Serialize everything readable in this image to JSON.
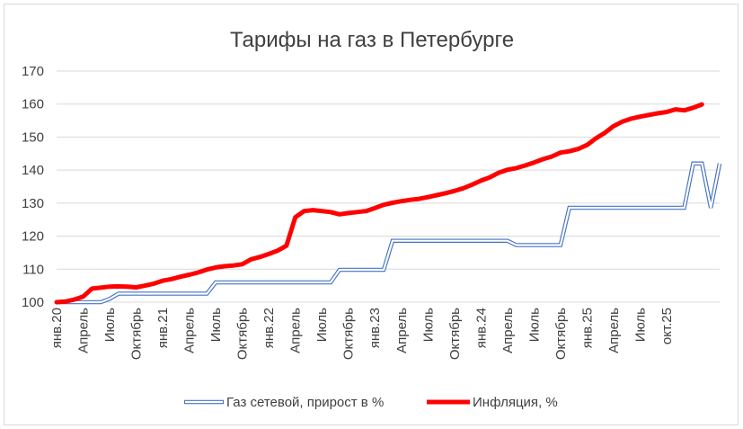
{
  "chart_data": {
    "type": "line",
    "title": "Тарифы на газ в Петербурге",
    "xlabel": "",
    "ylabel": "",
    "ylim": [
      100,
      170
    ],
    "yticks": [
      100,
      110,
      120,
      130,
      140,
      150,
      160,
      170
    ],
    "x_tick_labels": [
      "янв.20",
      "Апрель",
      "Июль",
      "Октябрь",
      "янв.21",
      "Апрель",
      "Июль",
      "Октябрь",
      "янв.22",
      "Апрель",
      "Июль",
      "Октябрь",
      "янв.23",
      "Апрель",
      "Июль",
      "Октябрь",
      "янв.24",
      "Апрель",
      "Июль",
      "Октябрь",
      "янв.25",
      "Апрель",
      "Июль",
      "окт.25"
    ],
    "grid": true,
    "legend_position": "bottom",
    "series": [
      {
        "name": "Газ сетевой, прирост в %",
        "color": "#4472c4",
        "style": "double-line",
        "values": [
          100,
          100,
          100,
          100,
          100,
          100,
          101,
          102.6,
          102.6,
          102.6,
          102.6,
          102.6,
          102.6,
          102.6,
          102.6,
          102.6,
          102.6,
          102.6,
          106,
          106,
          106,
          106,
          106,
          106,
          106,
          106,
          106,
          106,
          106,
          106,
          106,
          106,
          109.8,
          109.8,
          109.8,
          109.8,
          109.8,
          109.8,
          118.6,
          118.6,
          118.6,
          118.6,
          118.6,
          118.6,
          118.6,
          118.6,
          118.6,
          118.6,
          118.6,
          118.6,
          118.6,
          118.6,
          117.3,
          117.3,
          117.3,
          117.3,
          117.3,
          117.3,
          128.6,
          128.6,
          128.6,
          128.6,
          128.6,
          128.6,
          128.6,
          128.6,
          128.6,
          128.6,
          128.6,
          128.6,
          128.6,
          128.6,
          142,
          142,
          128.6,
          142
        ]
      },
      {
        "name": "Инфляция, %",
        "color": "#ff0000",
        "style": "thick",
        "values": [
          100,
          100.2,
          100.8,
          101.7,
          104.1,
          104.4,
          104.7,
          104.8,
          104.7,
          104.5,
          105,
          105.6,
          106.5,
          107,
          107.7,
          108.3,
          109,
          109.9,
          110.5,
          110.9,
          111.1,
          111.5,
          113,
          113.7,
          114.6,
          115.6,
          117.1,
          125.7,
          127.6,
          127.9,
          127.6,
          127.3,
          126.6,
          127,
          127.3,
          127.6,
          128.5,
          129.5,
          130.1,
          130.6,
          131,
          131.3,
          131.8,
          132.4,
          133,
          133.7,
          134.5,
          135.6,
          136.8,
          137.8,
          139.2,
          140.1,
          140.6,
          141.4,
          142.3,
          143.3,
          144.1,
          145.3,
          145.7,
          146.4,
          147.6,
          149.6,
          151.3,
          153.3,
          154.7,
          155.6,
          156.2,
          156.7,
          157.2,
          157.6,
          158.4,
          158.1,
          158.9,
          159.9
        ]
      }
    ]
  }
}
